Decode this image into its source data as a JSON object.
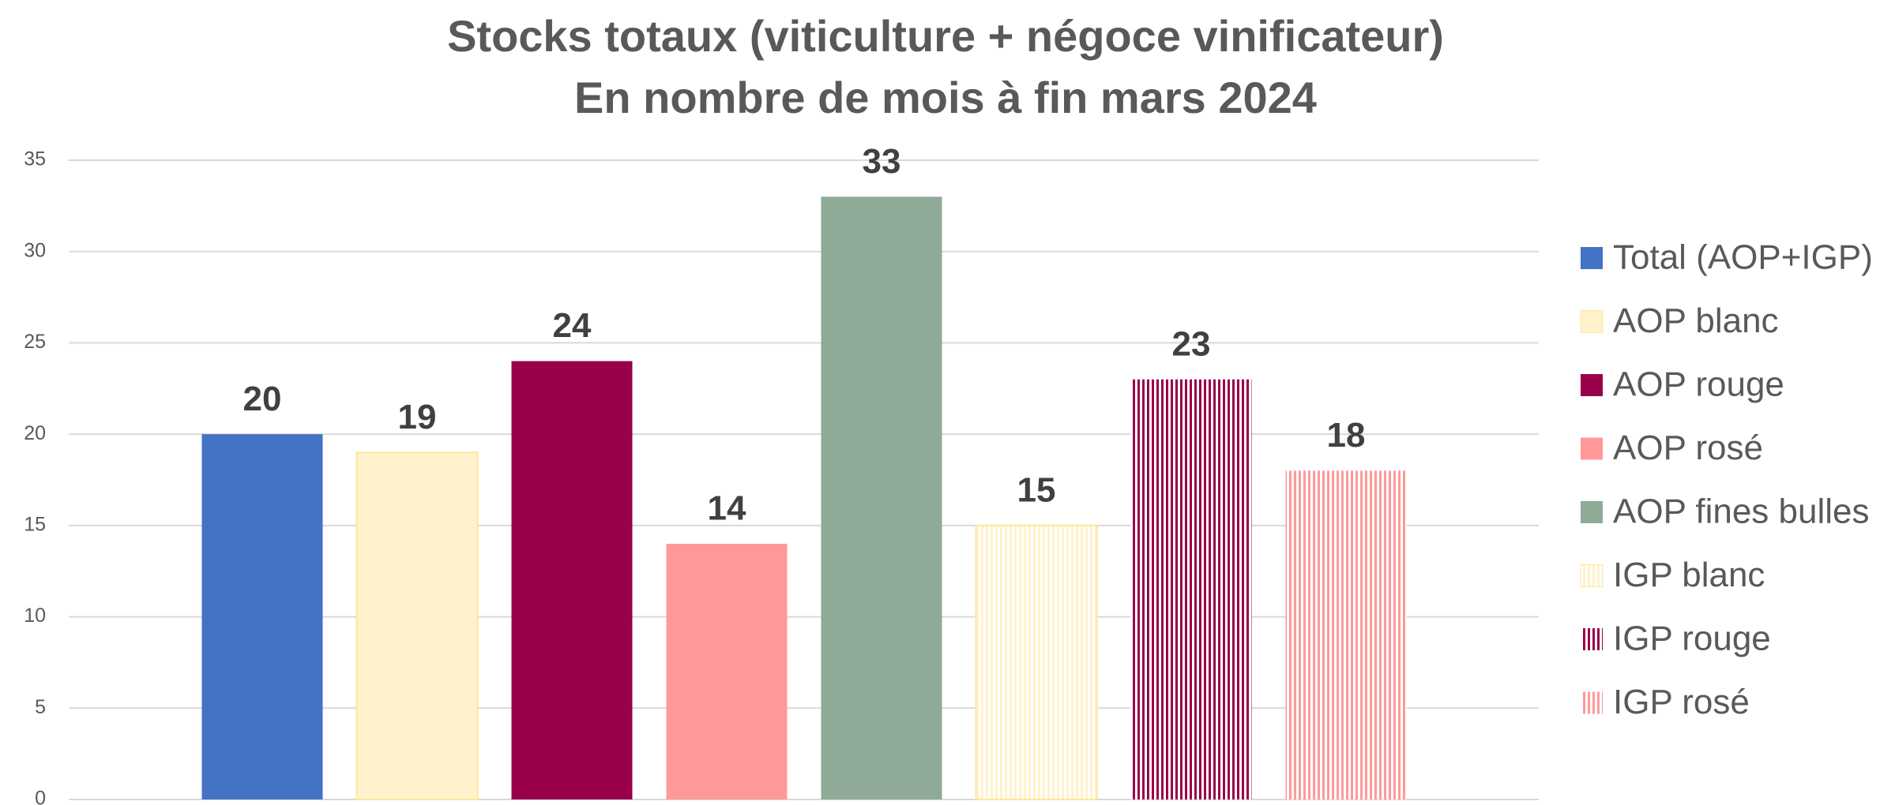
{
  "chart_data": {
    "type": "bar",
    "title": [
      "Stocks totaux (viticulture + négoce vinificateur)",
      "En nombre de mois à fin mars 2024"
    ],
    "categories": [
      "Total (AOP+IGP)",
      "AOP blanc",
      "AOP rouge",
      "AOP rosé",
      "AOP fines bulles",
      "IGP blanc",
      "IGP rouge",
      "IGP rosé"
    ],
    "values": [
      20,
      19,
      24,
      14,
      33,
      15,
      23,
      18
    ],
    "colors": [
      "#4472c4",
      "#fff2cc",
      "#990049",
      "#ff9999",
      "#8faa96",
      "#fff2cc",
      "#990049",
      "#ff9999"
    ],
    "striped": [
      false,
      false,
      false,
      false,
      false,
      true,
      true,
      true
    ],
    "ylim": [
      0,
      35
    ],
    "yticks": [
      0,
      5,
      10,
      15,
      20,
      25,
      30,
      35
    ],
    "grid": true,
    "legend": "right"
  }
}
